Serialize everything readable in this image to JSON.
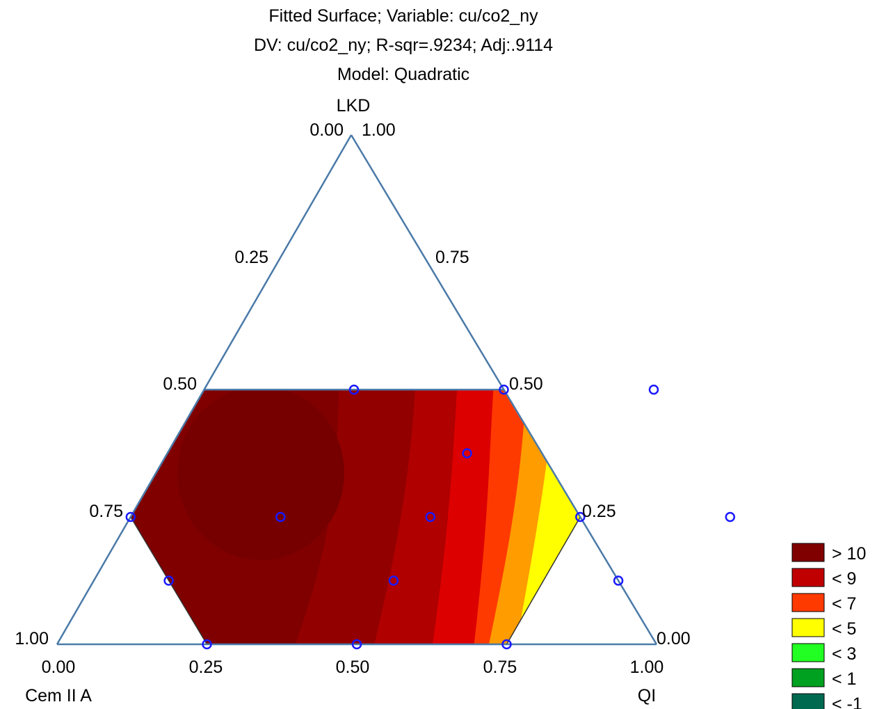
{
  "chart_data": {
    "type": "ternary-contour",
    "title_lines": [
      "Fitted Surface; Variable: cu/co2_ny",
      "DV: cu/co2_ny; R-sqr=.9234; Adj:.9114",
      "Model: Quadratic"
    ],
    "vertices": {
      "top": "LKD",
      "left": "Cem II A",
      "right": "QI"
    },
    "bottom_axis_ticks": [
      "0.00",
      "0.25",
      "0.50",
      "0.75",
      "1.00"
    ],
    "left_axis_ticks": [
      "0.00",
      "0.25",
      "0.50",
      "0.75",
      "1.00"
    ],
    "right_axis_ticks": [
      "1.00",
      "0.75",
      "0.50",
      "0.25",
      "0.00"
    ],
    "lkd_range": [
      0,
      0.5
    ],
    "legend": [
      {
        "label": "> 10",
        "color": "#800000"
      },
      {
        "label": "< 9",
        "color": "#c00000"
      },
      {
        "label": "< 7",
        "color": "#ff3a00"
      },
      {
        "label": "< 5",
        "color": "#ffff00"
      },
      {
        "label": "< 3",
        "color": "#22ff22"
      },
      {
        "label": "< 1",
        "color": "#00a020"
      },
      {
        "label": "< -1",
        "color": "#006a50"
      }
    ],
    "design_points": [
      {
        "LKD": 0.5,
        "QI": 0.25
      },
      {
        "LKD": 0.5,
        "QI": 0.5
      },
      {
        "LKD": 0.5,
        "QI": 0.75
      },
      {
        "LKD": 0.25,
        "QI": 0.0
      },
      {
        "LKD": 0.25,
        "QI": 0.25
      },
      {
        "LKD": 0.25,
        "QI": 0.5
      },
      {
        "LKD": 0.25,
        "QI": 0.75
      },
      {
        "LKD": 0.25,
        "QI": 1.0
      },
      {
        "LKD": 0.125,
        "QI": 0.125
      },
      {
        "LKD": 0.125,
        "QI": 0.875
      },
      {
        "LKD": 0.375,
        "QI": 0.5
      },
      {
        "LKD": 0.125,
        "QI": 0.5
      },
      {
        "LKD": 0.0,
        "QI": 0.25
      },
      {
        "LKD": 0.0,
        "QI": 0.5
      },
      {
        "LKD": 0.0,
        "QI": 0.75
      }
    ]
  }
}
